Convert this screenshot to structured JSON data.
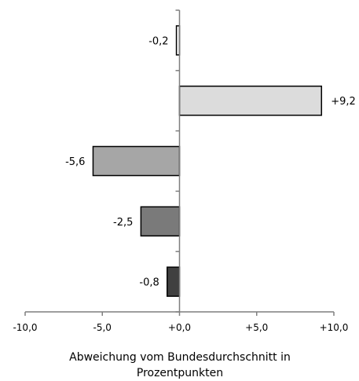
{
  "chart_data": {
    "type": "bar",
    "orientation": "horizontal",
    "values": [
      -0.2,
      9.2,
      -5.6,
      -2.5,
      -0.8
    ],
    "value_labels": [
      "-0,2",
      "+9,2",
      "-5,6",
      "-2,5",
      "-0,8"
    ],
    "bar_colors": [
      "#ffffff",
      "#dcdcdc",
      "#a6a6a6",
      "#7a7a7a",
      "#404040"
    ],
    "xlim": [
      -10,
      10
    ],
    "x_ticks": [
      -10,
      -5,
      0,
      5,
      10
    ],
    "x_tick_labels": [
      "-10,0",
      "-5,0",
      "+0,0",
      "+5,0",
      "+10,0"
    ],
    "xlabel_lines": [
      "Abweichung vom Bundesdurchschnitt in",
      "Prozentpunkten"
    ],
    "title": "",
    "grid": false,
    "legend": "none"
  }
}
